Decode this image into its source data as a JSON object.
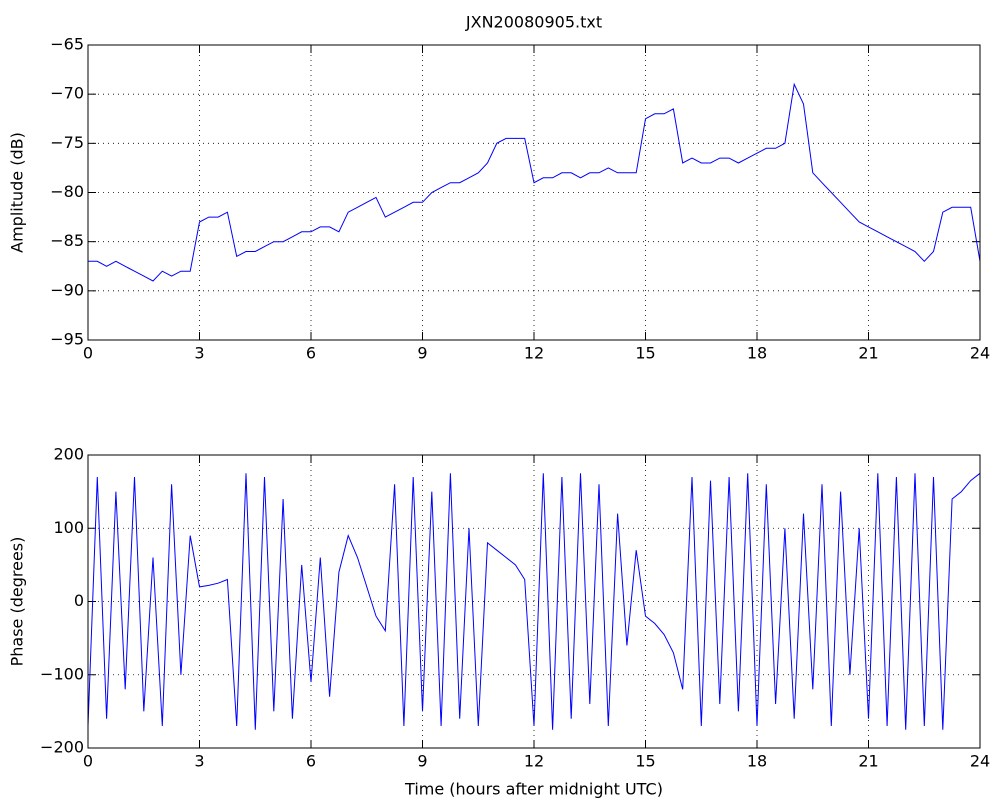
{
  "chart_data": [
    {
      "type": "line",
      "title": "JXN20080905.txt",
      "ylabel": "Amplitude (dB)",
      "color": "#0000ff",
      "grid": true,
      "x": [
        0,
        0.25,
        0.5,
        0.75,
        1,
        1.25,
        1.5,
        1.75,
        2,
        2.25,
        2.5,
        2.75,
        3,
        3.25,
        3.5,
        3.75,
        4,
        4.25,
        4.5,
        4.75,
        5,
        5.25,
        5.5,
        5.75,
        6,
        6.25,
        6.5,
        6.75,
        7,
        7.25,
        7.5,
        7.75,
        8,
        8.25,
        8.5,
        8.75,
        9,
        9.25,
        9.5,
        9.75,
        10,
        10.25,
        10.5,
        10.75,
        11,
        11.25,
        11.5,
        11.75,
        12,
        12.25,
        12.5,
        12.75,
        13,
        13.25,
        13.5,
        13.75,
        14,
        14.25,
        14.5,
        14.75,
        15,
        15.25,
        15.5,
        15.75,
        16,
        16.25,
        16.5,
        16.75,
        17,
        17.25,
        17.5,
        17.75,
        18,
        18.25,
        18.5,
        18.75,
        19,
        19.25,
        19.5,
        19.75,
        20,
        20.25,
        20.5,
        20.75,
        21,
        21.25,
        21.5,
        21.75,
        22,
        22.25,
        22.5,
        22.75,
        23,
        23.25,
        23.5,
        23.75,
        24
      ],
      "values": [
        -87,
        -87,
        -87.5,
        -87,
        -87.5,
        -88,
        -88.5,
        -89,
        -88,
        -88.5,
        -88,
        -88,
        -83,
        -82.5,
        -82.5,
        -82,
        -86.5,
        -86,
        -86,
        -85.5,
        -85,
        -85,
        -84.5,
        -84,
        -84,
        -83.5,
        -83.5,
        -84,
        -82,
        -81.5,
        -81,
        -80.5,
        -82.5,
        -82,
        -81.5,
        -81,
        -81,
        -80,
        -79.5,
        -79,
        -79,
        -78.5,
        -78,
        -77,
        -75,
        -74.5,
        -74.5,
        -74.5,
        -79,
        -78.5,
        -78.5,
        -78,
        -78,
        -78.5,
        -78,
        -78,
        -77.5,
        -78,
        -78,
        -78,
        -72.5,
        -72,
        -72,
        -71.5,
        -77,
        -76.5,
        -77,
        -77,
        -76.5,
        -76.5,
        -77,
        -76.5,
        -76,
        -75.5,
        -75.5,
        -75,
        -69,
        -71,
        -78,
        -79,
        -80,
        -81,
        -82,
        -83,
        -83.5,
        -84,
        -84.5,
        -85,
        -85.5,
        -86,
        -87,
        -86,
        -82,
        -81.5,
        -81.5,
        -81.5,
        -87
      ],
      "xlim": [
        0,
        24
      ],
      "xticks": [
        0,
        3,
        6,
        9,
        12,
        15,
        18,
        21,
        24
      ],
      "ylim": [
        -95,
        -65
      ],
      "yticks": [
        {
          "value": -95,
          "label": "−95"
        },
        {
          "value": -90,
          "label": "−90"
        },
        {
          "value": -85,
          "label": "−85"
        },
        {
          "value": -80,
          "label": "−80"
        },
        {
          "value": -75,
          "label": "−75"
        },
        {
          "value": -70,
          "label": "−70"
        },
        {
          "value": -65,
          "label": "−65"
        }
      ]
    },
    {
      "type": "line",
      "ylabel": "Phase (degrees)",
      "xlabel": "Time (hours after midnight UTC)",
      "color": "#0000ff",
      "grid": true,
      "x": [
        0,
        0.25,
        0.5,
        0.75,
        1,
        1.25,
        1.5,
        1.75,
        2,
        2.25,
        2.5,
        2.75,
        3,
        3.25,
        3.5,
        3.75,
        4,
        4.25,
        4.5,
        4.75,
        5,
        5.25,
        5.5,
        5.75,
        6,
        6.25,
        6.5,
        6.75,
        7,
        7.25,
        7.5,
        7.75,
        8,
        8.25,
        8.5,
        8.75,
        9,
        9.25,
        9.5,
        9.75,
        10,
        10.25,
        10.5,
        10.75,
        11,
        11.25,
        11.5,
        11.75,
        12,
        12.25,
        12.5,
        12.75,
        13,
        13.25,
        13.5,
        13.75,
        14,
        14.25,
        14.5,
        14.75,
        15,
        15.25,
        15.5,
        15.75,
        16,
        16.25,
        16.5,
        16.75,
        17,
        17.25,
        17.5,
        17.75,
        18,
        18.25,
        18.5,
        18.75,
        19,
        19.25,
        19.5,
        19.75,
        20,
        20.25,
        20.5,
        20.75,
        21,
        21.25,
        21.5,
        21.75,
        22,
        22.25,
        22.5,
        22.75,
        23,
        23.25,
        23.5,
        23.75,
        24
      ],
      "values": [
        -170,
        170,
        -160,
        150,
        -120,
        170,
        -150,
        60,
        -170,
        160,
        -100,
        90,
        20,
        22,
        25,
        30,
        -170,
        175,
        -175,
        170,
        -150,
        140,
        -160,
        50,
        -110,
        60,
        -130,
        40,
        90,
        60,
        20,
        -20,
        -40,
        160,
        -170,
        170,
        -150,
        150,
        -170,
        175,
        -160,
        100,
        -170,
        80,
        70,
        60,
        50,
        30,
        -170,
        175,
        -175,
        170,
        -160,
        175,
        -140,
        160,
        -170,
        120,
        -60,
        70,
        -20,
        -30,
        -45,
        -70,
        -120,
        170,
        -170,
        165,
        -140,
        170,
        -150,
        175,
        -170,
        160,
        -140,
        100,
        -160,
        120,
        -120,
        160,
        -170,
        150,
        -100,
        100,
        -160,
        175,
        -170,
        170,
        -175,
        175,
        -170,
        170,
        -175,
        140,
        150,
        165,
        175
      ],
      "xlim": [
        0,
        24
      ],
      "xticks": [
        0,
        3,
        6,
        9,
        12,
        15,
        18,
        21,
        24
      ],
      "ylim": [
        -200,
        200
      ],
      "yticks": [
        {
          "value": -200,
          "label": "−200"
        },
        {
          "value": -100,
          "label": "−100"
        },
        0,
        100,
        200
      ]
    }
  ]
}
